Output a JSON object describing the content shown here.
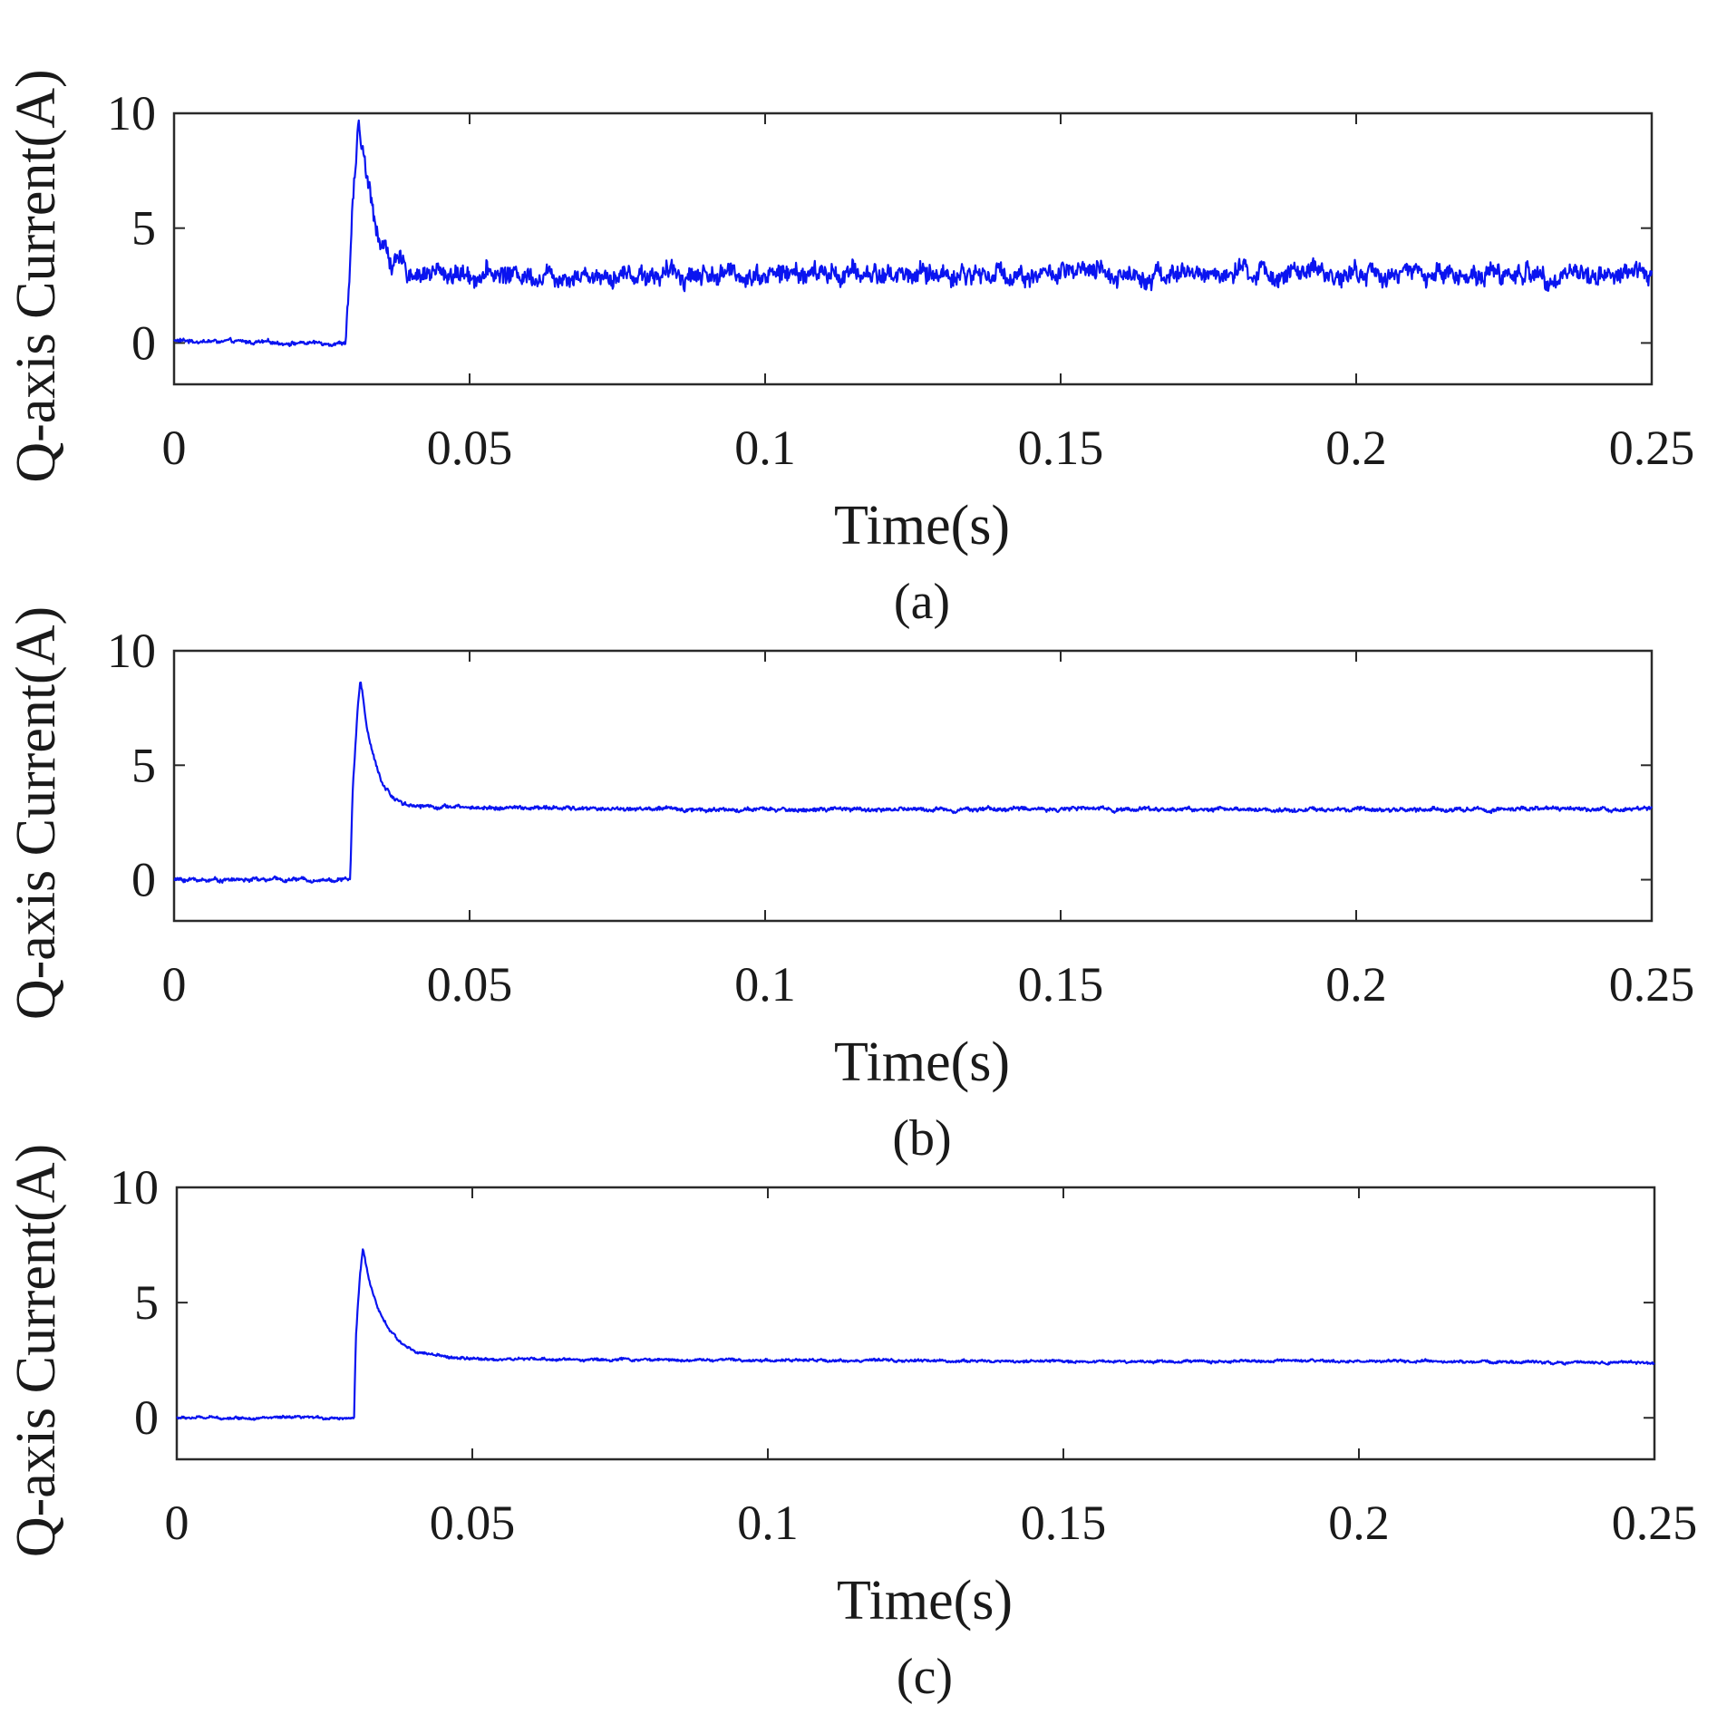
{
  "chart_data": [
    {
      "type": "line",
      "caption": "(a)",
      "xlabel": "Time(s)",
      "ylabel": "Q-axis Current(A)",
      "xlim": [
        0,
        0.25
      ],
      "ylim": [
        -1.8,
        10
      ],
      "x_ticks": [
        "0",
        "0.05",
        "0.1",
        "0.15",
        "0.2",
        "0.25"
      ],
      "y_ticks": [
        "0",
        "5",
        "10"
      ],
      "grid": false,
      "series": [
        {
          "name": "Q-axis current",
          "color": "#0a14f0",
          "x": [
            0,
            0.01,
            0.02,
            0.029,
            0.0298,
            0.0305,
            0.0312,
            0.0318,
            0.0325,
            0.0335,
            0.035,
            0.037,
            0.04,
            0.05,
            0.1,
            0.15,
            0.2,
            0.25
          ],
          "y": [
            0.1,
            0.05,
            0.0,
            0.0,
            3.5,
            7.0,
            9.1,
            8.6,
            7.3,
            5.9,
            4.4,
            3.5,
            3.1,
            3.0,
            3.0,
            3.0,
            3.0,
            3.0
          ],
          "noise_amplitude": 0.6
        }
      ]
    },
    {
      "type": "line",
      "caption": "(b)",
      "xlabel": "Time(s)",
      "ylabel": "Q-axis Current(A)",
      "xlim": [
        0,
        0.25
      ],
      "ylim": [
        -1.8,
        10
      ],
      "x_ticks": [
        "0",
        "0.05",
        "0.1",
        "0.15",
        "0.2",
        "0.25"
      ],
      "y_ticks": [
        "0",
        "5",
        "10"
      ],
      "grid": false,
      "series": [
        {
          "name": "Q-axis current",
          "color": "#0a14f0",
          "x": [
            0,
            0.01,
            0.02,
            0.0298,
            0.0302,
            0.031,
            0.0315,
            0.0318,
            0.0325,
            0.0335,
            0.035,
            0.037,
            0.04,
            0.05,
            0.1,
            0.15,
            0.2,
            0.25
          ],
          "y": [
            0.0,
            0.0,
            0.0,
            0.0,
            3.8,
            7.2,
            8.7,
            8.3,
            6.9,
            5.6,
            4.3,
            3.6,
            3.25,
            3.15,
            3.05,
            3.1,
            3.05,
            3.1
          ],
          "noise_amplitude": 0.12
        }
      ]
    },
    {
      "type": "line",
      "caption": "(c)",
      "xlabel": "Time(s)",
      "ylabel": "Q-axis Current(A)",
      "xlim": [
        0,
        0.25
      ],
      "ylim": [
        -1.8,
        10
      ],
      "x_ticks": [
        "0",
        "0.05",
        "0.1",
        "0.15",
        "0.2",
        "0.25"
      ],
      "y_ticks": [
        "0",
        "5",
        "10"
      ],
      "grid": false,
      "series": [
        {
          "name": "Q-axis current",
          "color": "#0a14f0",
          "x": [
            0,
            0.01,
            0.02,
            0.03,
            0.0303,
            0.031,
            0.0315,
            0.0318,
            0.0325,
            0.034,
            0.036,
            0.038,
            0.041,
            0.045,
            0.05,
            0.1,
            0.15,
            0.2,
            0.25
          ],
          "y": [
            0.0,
            0.0,
            0.0,
            0.0,
            3.5,
            6.2,
            7.4,
            7.0,
            6.0,
            4.7,
            3.8,
            3.2,
            2.85,
            2.65,
            2.55,
            2.5,
            2.45,
            2.45,
            2.4
          ],
          "noise_amplitude": 0.08
        }
      ]
    }
  ]
}
